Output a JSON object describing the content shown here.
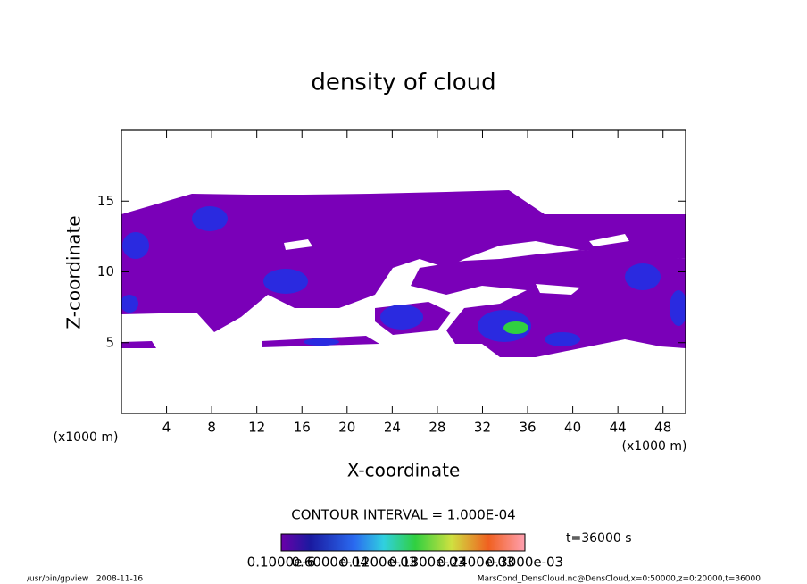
{
  "chart_data": {
    "type": "contour",
    "title": "density of cloud",
    "x_label": "X-coordinate",
    "y_label": "Z-coordinate",
    "x_unit_label": "(x1000 m)",
    "y_unit_label": "(x1000 m)",
    "xlim": [
      0,
      50
    ],
    "xticks": [
      4,
      8,
      12,
      16,
      20,
      24,
      28,
      32,
      36,
      40,
      44,
      48
    ],
    "ylim": [
      0,
      20
    ],
    "yticks": [
      5,
      10,
      15
    ],
    "contour_interval_label": "CONTOUR INTERVAL = 1.000E-04",
    "time_label": "t=36000 s",
    "colorbar_labels": [
      "0.1000e-6",
      "0.6000e-04",
      "0.1200e-03",
      "0.1800e-03",
      "0.2400e-03",
      "0.3000e-03"
    ],
    "footer_left": "/usr/bin/gpview   2008-11-16",
    "footer_right": "MarsCond_DensCloud.nc@DensCloud,x=0:50000,z=0:20000,t=36000"
  }
}
